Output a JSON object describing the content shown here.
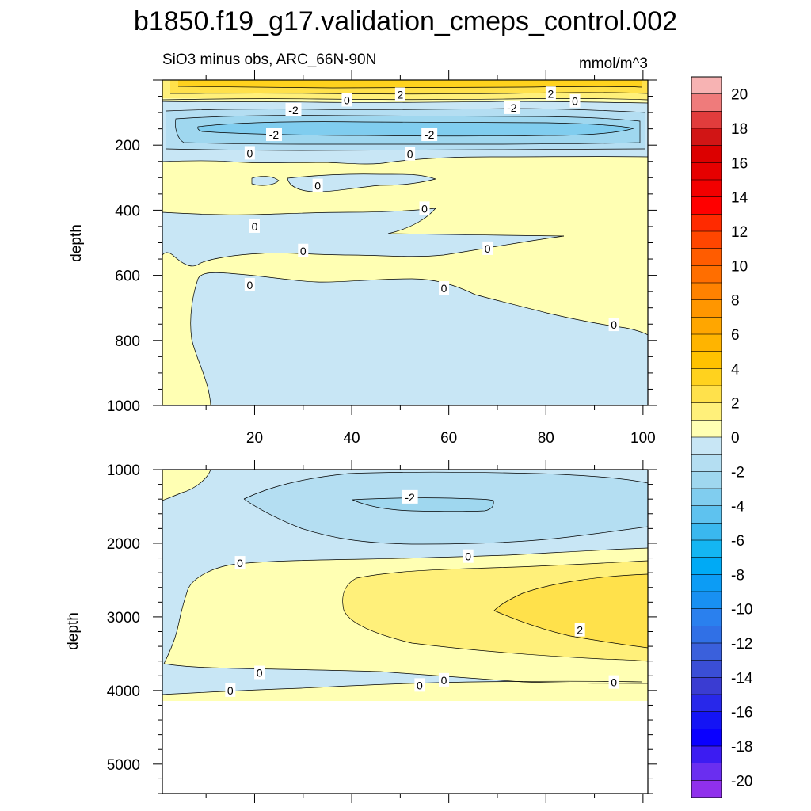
{
  "figure": {
    "title": "b1850.f19_g17.validation_cmeps_control.002",
    "subtitle_left": "SiO3 minus obs, ARC_66N-90N",
    "subtitle_right": "mmol/m^3"
  },
  "chart_data": [
    {
      "type": "contour",
      "panel": "upper",
      "title": "SiO3 minus obs, ARC_66N-90N",
      "units": "mmol/m^3",
      "xlabel": "",
      "ylabel": "depth",
      "xlim": [
        1,
        101
      ],
      "ylim": [
        1000,
        0
      ],
      "xticks": [
        20,
        40,
        60,
        80,
        100
      ],
      "yticks": [
        200,
        400,
        600,
        800,
        1000
      ],
      "contour_interval": 1,
      "contour_labels": [
        {
          "text": "0",
          "x": 39,
          "y": 62
        },
        {
          "text": "2",
          "x": 50,
          "y": 45
        },
        {
          "text": "2",
          "x": 81,
          "y": 42
        },
        {
          "text": "0",
          "x": 86,
          "y": 65
        },
        {
          "text": "-2",
          "x": 28,
          "y": 92
        },
        {
          "text": "-2",
          "x": 73,
          "y": 85
        },
        {
          "text": "-2",
          "x": 24,
          "y": 168
        },
        {
          "text": "-2",
          "x": 56,
          "y": 168
        },
        {
          "text": "0",
          "x": 19,
          "y": 225
        },
        {
          "text": "0",
          "x": 52,
          "y": 228
        },
        {
          "text": "0",
          "x": 33,
          "y": 325
        },
        {
          "text": "0",
          "x": 55,
          "y": 395
        },
        {
          "text": "0",
          "x": 20,
          "y": 450
        },
        {
          "text": "0",
          "x": 30,
          "y": 525
        },
        {
          "text": "0",
          "x": 68,
          "y": 518
        },
        {
          "text": "0",
          "x": 19,
          "y": 630
        },
        {
          "text": "0",
          "x": 59,
          "y": 640
        },
        {
          "text": "0",
          "x": 94,
          "y": 752
        }
      ]
    },
    {
      "type": "contour",
      "panel": "lower",
      "xlabel": "",
      "ylabel": "depth",
      "xlim": [
        1,
        101
      ],
      "ylim": [
        5400,
        1000
      ],
      "yticks": [
        1000,
        2000,
        3000,
        4000,
        5000
      ],
      "contour_labels": [
        {
          "text": "-2",
          "x": 52,
          "y": 1375
        },
        {
          "text": "0",
          "x": 17,
          "y": 2270
        },
        {
          "text": "0",
          "x": 64,
          "y": 2180
        },
        {
          "text": "2",
          "x": 87,
          "y": 3180
        },
        {
          "text": "0",
          "x": 21,
          "y": 3760
        },
        {
          "text": "0",
          "x": 15,
          "y": 4000
        },
        {
          "text": "0",
          "x": 54,
          "y": 3930
        },
        {
          "text": "0",
          "x": 59,
          "y": 3860
        },
        {
          "text": "0",
          "x": 94,
          "y": 3890
        }
      ]
    }
  ],
  "colorbar": {
    "labels": [
      "20",
      "18",
      "16",
      "14",
      "12",
      "10",
      "8",
      "6",
      "4",
      "2",
      "0",
      "-2",
      "-4",
      "-6",
      "-8",
      "-10",
      "-12",
      "-14",
      "-16",
      "-18",
      "-20"
    ],
    "colors": [
      "#f7b3b3",
      "#ef7b7b",
      "#e13c3c",
      "#d11515",
      "#dc0000",
      "#e60000",
      "#f20000",
      "#ff0000",
      "#ff2a00",
      "#ff4600",
      "#ff5c00",
      "#ff6e00",
      "#ff8200",
      "#ff9600",
      "#ffa600",
      "#ffb400",
      "#ffc200",
      "#ffd21e",
      "#ffe14b",
      "#fff07a",
      "#ffffb3",
      "#c8e6f5",
      "#b4def2",
      "#9fd7ef",
      "#80cdef",
      "#5ec2ef",
      "#3ab8ef",
      "#14b6f2",
      "#00aaf5",
      "#0c9cf5",
      "#1890f2",
      "#2a80ee",
      "#3070e6",
      "#3a60dc",
      "#3a4ed6",
      "#3a3cd2",
      "#2828ea",
      "#1414f5",
      "#0a00ff",
      "#3c1cf2",
      "#6a2ef0",
      "#9030ec"
    ]
  }
}
